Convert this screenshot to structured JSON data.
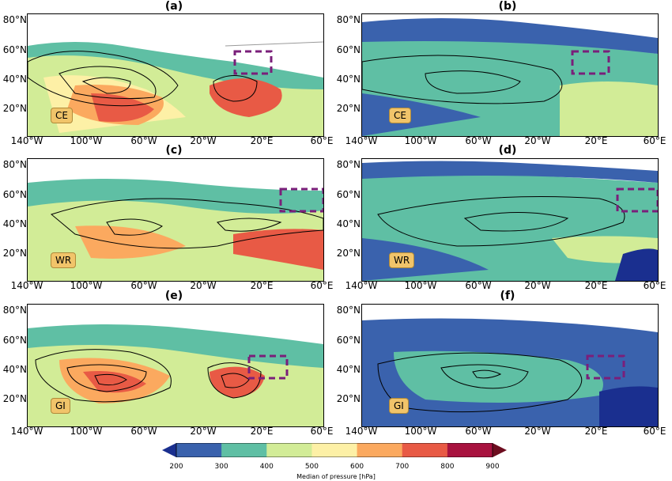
{
  "panels": [
    {
      "id": "a",
      "label": "(a)",
      "tag": "CE"
    },
    {
      "id": "b",
      "label": "(b)",
      "tag": "CE"
    },
    {
      "id": "c",
      "label": "(c)",
      "tag": "WR"
    },
    {
      "id": "d",
      "label": "(d)",
      "tag": "WR"
    },
    {
      "id": "e",
      "label": "(e)",
      "tag": "GI"
    },
    {
      "id": "f",
      "label": "(f)",
      "tag": "GI"
    }
  ],
  "lat_ticks": [
    "80°N",
    "60°N",
    "40°N",
    "20°N"
  ],
  "lon_ticks": [
    "140°W",
    "100°W",
    "60°W",
    "20°W",
    "20°E",
    "60°E"
  ],
  "colorbar": {
    "ticks": [
      "200",
      "300",
      "400",
      "500",
      "600",
      "700",
      "800",
      "900"
    ],
    "title": "Median of pressure [hPa]",
    "colors": [
      "#3a62ad",
      "#5fbfa4",
      "#d2ec97",
      "#fdf0a6",
      "#fba95f",
      "#e85a45",
      "#a8123f"
    ],
    "under_color": "#1a2f8f",
    "over_color": "#6d0d1f"
  },
  "colors": {
    "box": "#7a1f7a",
    "contour": "#000000",
    "coast": "#9a9a9a"
  }
}
